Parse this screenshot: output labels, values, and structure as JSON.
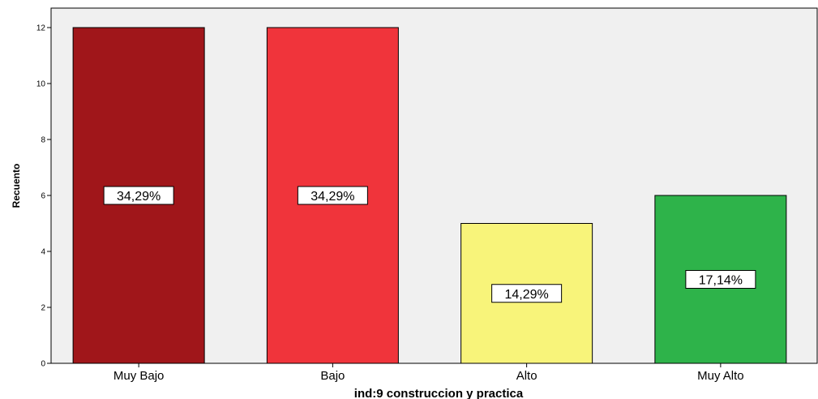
{
  "chart_data": {
    "type": "bar",
    "categories": [
      "Muy Bajo",
      "Bajo",
      "Alto",
      "Muy Alto"
    ],
    "values": [
      12,
      12,
      5,
      6
    ],
    "data_labels": [
      "34,29%",
      "34,29%",
      "14,29%",
      "17,14%"
    ],
    "colors": [
      "#A0161A",
      "#F0343B",
      "#F8F47A",
      "#2EB34A"
    ],
    "title": "",
    "xlabel": "ind:9 construccion y practica",
    "ylabel": "Recuento",
    "ylim": [
      0,
      12.7
    ],
    "yticks": [
      0,
      2,
      4,
      6,
      8,
      10,
      12
    ],
    "grid": false,
    "plot_background": "#F0F0F0"
  }
}
